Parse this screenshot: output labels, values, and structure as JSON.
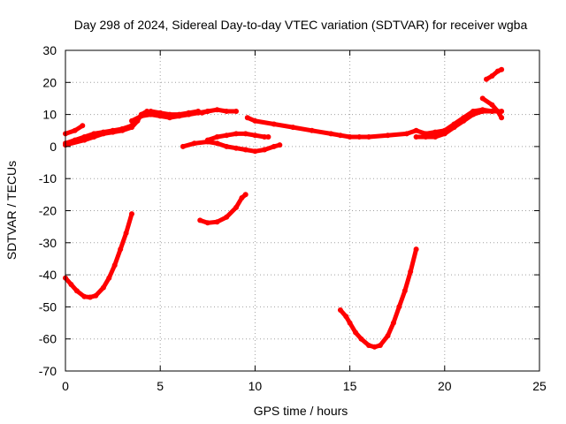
{
  "chart_data": {
    "type": "scatter",
    "title": "Day 298 of 2024, Sidereal Day-to-day VTEC variation (SDTVAR) for receiver wgba",
    "xlabel": "GPS time / hours",
    "ylabel": "SDTVAR / TECUs",
    "xlim": [
      0,
      25
    ],
    "ylim": [
      -70,
      30
    ],
    "xticks": [
      0,
      5,
      10,
      15,
      20,
      25
    ],
    "yticks": [
      -70,
      -60,
      -50,
      -40,
      -30,
      -20,
      -10,
      0,
      10,
      20,
      30
    ],
    "grid": true,
    "color": "#ff0000",
    "series": [
      {
        "name": "arc-a",
        "points": [
          [
            0,
            4
          ],
          [
            0.5,
            5
          ],
          [
            0.9,
            6.5
          ]
        ]
      },
      {
        "name": "arc-b",
        "points": [
          [
            0,
            1
          ],
          [
            0.5,
            2
          ],
          [
            1,
            3
          ],
          [
            1.5,
            4
          ],
          [
            2,
            4.5
          ],
          [
            2.5,
            5
          ],
          [
            3,
            5.5
          ],
          [
            3.5,
            6.5
          ]
        ]
      },
      {
        "name": "arc-c",
        "points": [
          [
            0,
            0.5
          ],
          [
            1,
            2
          ],
          [
            1.5,
            3
          ],
          [
            2,
            4
          ],
          [
            2.5,
            4.5
          ],
          [
            3,
            5
          ],
          [
            3.5,
            6
          ],
          [
            3.8,
            8
          ],
          [
            4,
            10
          ],
          [
            4.3,
            11
          ]
        ]
      },
      {
        "name": "arc-d",
        "points": [
          [
            3.5,
            8
          ],
          [
            4,
            9.5
          ],
          [
            4.5,
            10
          ],
          [
            5,
            9.5
          ],
          [
            5.5,
            9
          ],
          [
            6,
            9.5
          ],
          [
            6.5,
            10
          ],
          [
            7,
            10.5
          ],
          [
            7.5,
            11
          ]
        ]
      },
      {
        "name": "arc-e",
        "points": [
          [
            4.5,
            11
          ],
          [
            5,
            10.5
          ],
          [
            5.5,
            10
          ],
          [
            6,
            10
          ],
          [
            6.5,
            10.5
          ],
          [
            7,
            11
          ]
        ]
      },
      {
        "name": "arc-f",
        "points": [
          [
            7.2,
            10.5
          ],
          [
            7.5,
            11
          ],
          [
            8,
            11.5
          ],
          [
            8.5,
            11
          ],
          [
            9,
            11
          ]
        ]
      },
      {
        "name": "arc-g",
        "points": [
          [
            6.2,
            0
          ],
          [
            6.8,
            1
          ],
          [
            7.5,
            1.5
          ],
          [
            8,
            1
          ],
          [
            8.5,
            0
          ],
          [
            9,
            -0.5
          ],
          [
            9.5,
            -1
          ],
          [
            10,
            -1.5
          ],
          [
            10.5,
            -1
          ],
          [
            11,
            0
          ],
          [
            11.3,
            0.5
          ]
        ]
      },
      {
        "name": "arc-h",
        "points": [
          [
            7.5,
            2
          ],
          [
            8,
            3
          ],
          [
            8.5,
            3.5
          ],
          [
            9,
            4
          ],
          [
            9.5,
            4
          ],
          [
            10,
            3.5
          ],
          [
            10.5,
            3
          ],
          [
            10.7,
            3
          ]
        ]
      },
      {
        "name": "arc-i",
        "points": [
          [
            0,
            -41
          ],
          [
            0.3,
            -43
          ],
          [
            0.6,
            -45
          ],
          [
            1,
            -46.8
          ],
          [
            1.3,
            -47
          ],
          [
            1.6,
            -46.5
          ],
          [
            2,
            -44
          ],
          [
            2.3,
            -41
          ],
          [
            2.6,
            -37
          ],
          [
            2.9,
            -32
          ],
          [
            3.2,
            -27
          ],
          [
            3.5,
            -21
          ]
        ]
      },
      {
        "name": "arc-j",
        "points": [
          [
            7.1,
            -23
          ],
          [
            7.5,
            -23.8
          ],
          [
            8,
            -23.5
          ],
          [
            8.5,
            -22
          ],
          [
            9,
            -19
          ],
          [
            9.3,
            -16
          ],
          [
            9.5,
            -15
          ]
        ]
      },
      {
        "name": "arc-k",
        "points": [
          [
            9.6,
            9
          ],
          [
            10,
            8
          ],
          [
            11,
            7
          ],
          [
            12,
            6
          ],
          [
            13,
            5
          ],
          [
            14,
            4
          ],
          [
            14.5,
            3.5
          ],
          [
            15,
            3
          ],
          [
            15.5,
            3
          ],
          [
            16,
            3
          ],
          [
            17,
            3.5
          ],
          [
            18,
            4
          ],
          [
            18.5,
            5
          ],
          [
            19,
            4
          ],
          [
            19.5,
            4.5
          ],
          [
            20,
            5
          ],
          [
            20.5,
            7
          ],
          [
            21,
            9
          ],
          [
            21.5,
            11
          ],
          [
            22,
            11.5
          ],
          [
            22.5,
            11
          ],
          [
            23,
            11
          ]
        ]
      },
      {
        "name": "arc-l",
        "points": [
          [
            18.5,
            3
          ],
          [
            19,
            3
          ],
          [
            19.5,
            3
          ],
          [
            20,
            4
          ],
          [
            20.5,
            6
          ],
          [
            21,
            8
          ],
          [
            21.5,
            10
          ],
          [
            22,
            11
          ],
          [
            22.5,
            11
          ]
        ]
      },
      {
        "name": "arc-m",
        "points": [
          [
            22,
            15
          ],
          [
            22.5,
            13
          ],
          [
            22.8,
            11
          ],
          [
            23,
            9
          ]
        ]
      },
      {
        "name": "arc-n",
        "points": [
          [
            22.2,
            21
          ],
          [
            22.5,
            22
          ],
          [
            22.8,
            23.5
          ],
          [
            23,
            24
          ]
        ]
      },
      {
        "name": "arc-o",
        "points": [
          [
            14.5,
            -51
          ],
          [
            14.8,
            -53
          ],
          [
            15,
            -55
          ],
          [
            15.3,
            -58
          ],
          [
            15.6,
            -60
          ],
          [
            16,
            -62
          ],
          [
            16.3,
            -62.5
          ],
          [
            16.6,
            -62
          ],
          [
            17,
            -59
          ],
          [
            17.3,
            -55
          ],
          [
            17.6,
            -50
          ],
          [
            17.9,
            -45
          ],
          [
            18.2,
            -39
          ],
          [
            18.5,
            -32
          ]
        ]
      }
    ]
  }
}
